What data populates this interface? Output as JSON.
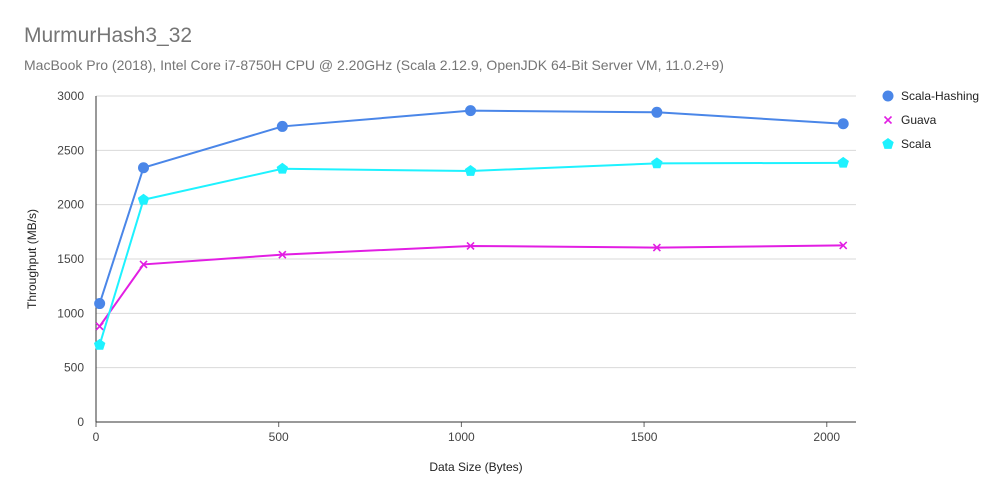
{
  "chart_data": {
    "type": "line",
    "title": "MurmurHash3_32",
    "subtitle": "MacBook Pro (2018), Intel Core i7-8750H CPU @ 2.20GHz (Scala 2.12.9, OpenJDK 64-Bit Server VM, 11.0.2+9)",
    "xlabel": "Data Size (Bytes)",
    "ylabel": "Throughput (MB/s)",
    "xlim": [
      0,
      2080
    ],
    "ylim": [
      0,
      3000
    ],
    "xticks": [
      0,
      500,
      1000,
      1500,
      2000
    ],
    "yticks": [
      0,
      500,
      1000,
      1500,
      2000,
      2500,
      3000
    ],
    "grid": true,
    "legend_position": "right",
    "x": [
      10,
      130,
      510,
      1025,
      1535,
      2045
    ],
    "series": [
      {
        "name": "Scala-Hashing",
        "marker": "circle",
        "color": "#4a86e8",
        "values": [
          1090,
          2340,
          2720,
          2865,
          2850,
          2745
        ]
      },
      {
        "name": "Guava",
        "marker": "x",
        "color": "#e21ee3",
        "values": [
          880,
          1450,
          1540,
          1620,
          1605,
          1625
        ]
      },
      {
        "name": "Scala",
        "marker": "pentagon",
        "color": "#1ef2ff",
        "values": [
          710,
          2045,
          2330,
          2310,
          2380,
          2385
        ]
      }
    ]
  }
}
